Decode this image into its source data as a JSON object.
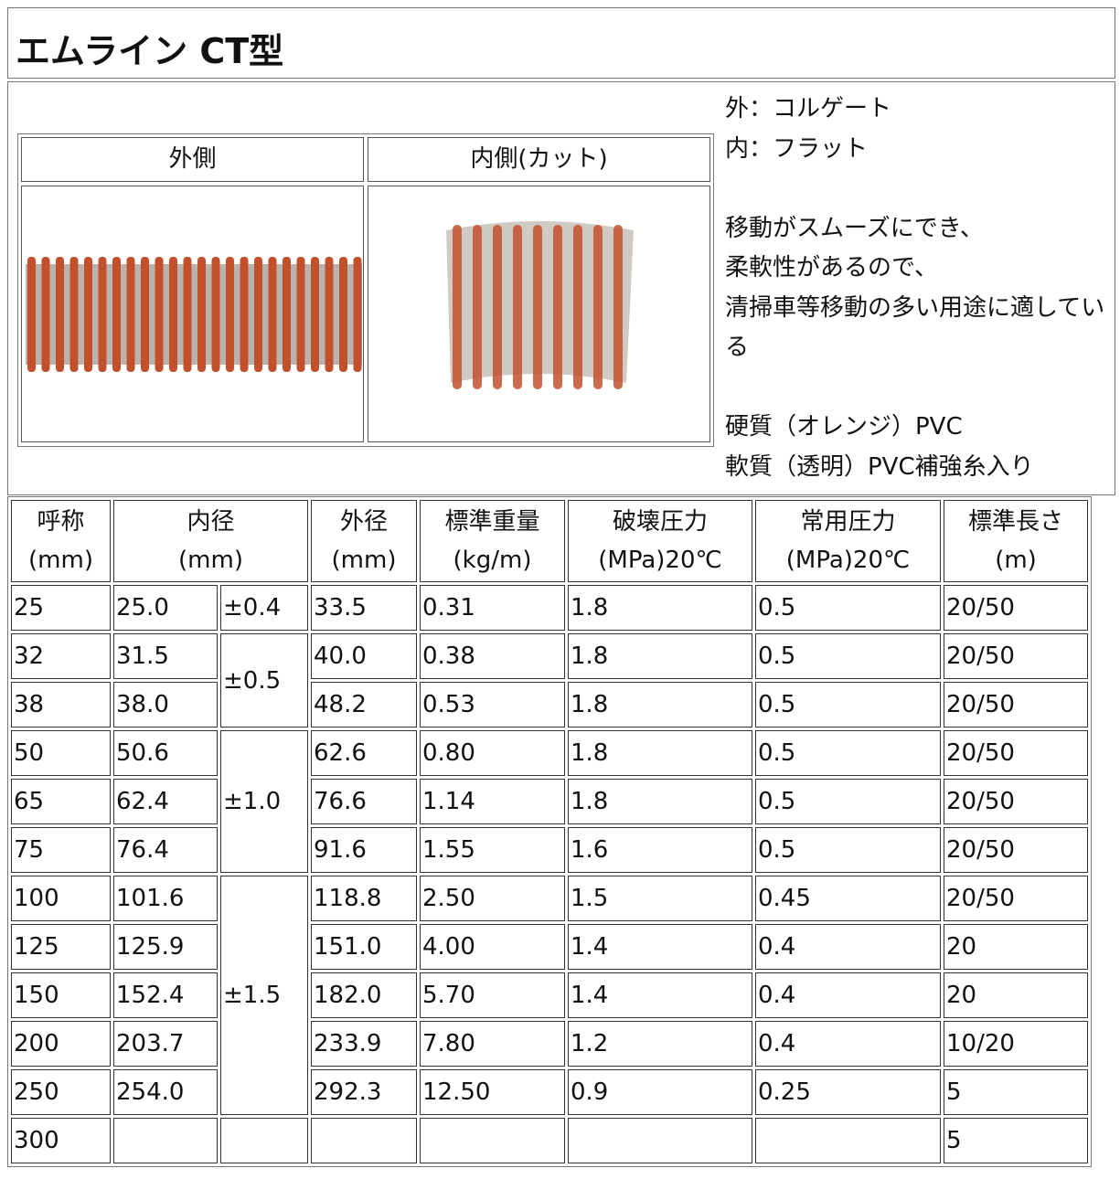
{
  "title": "エムライン CT型",
  "photos": {
    "headers": [
      "外側",
      "内側(カット)"
    ]
  },
  "description": {
    "structure": [
      "外：コルゲート",
      "内：フラット"
    ],
    "features": [
      "移動がスムーズにでき、",
      "柔軟性があるので、",
      "清掃車等移動の多い用途に適している"
    ],
    "materials": [
      "硬質（オレンジ）PVC",
      "軟質（透明）PVC補強糸入り"
    ]
  },
  "table": {
    "headers": [
      {
        "name": "呼称",
        "unit": "(mm)"
      },
      {
        "name": "内径",
        "unit": "(mm)"
      },
      {
        "name": "外径",
        "unit": "(mm)"
      },
      {
        "name": "標準重量",
        "unit": "(kg/m)"
      },
      {
        "name": "破壊圧力",
        "unit": "(MPa)20℃"
      },
      {
        "name": "常用圧力",
        "unit": "(MPa)20℃"
      },
      {
        "name": "標準長さ",
        "unit": "(m)"
      }
    ],
    "tolerances": [
      "±0.4",
      "±0.5",
      "±1.0",
      "±1.5"
    ],
    "rows": [
      [
        "25",
        "25.0",
        "33.5",
        "0.31",
        "1.8",
        "0.5",
        "20/50"
      ],
      [
        "32",
        "31.5",
        "40.0",
        "0.38",
        "1.8",
        "0.5",
        "20/50"
      ],
      [
        "38",
        "38.0",
        "48.2",
        "0.53",
        "1.8",
        "0.5",
        "20/50"
      ],
      [
        "50",
        "50.6",
        "62.6",
        "0.80",
        "1.8",
        "0.5",
        "20/50"
      ],
      [
        "65",
        "62.4",
        "76.6",
        "1.14",
        "1.8",
        "0.5",
        "20/50"
      ],
      [
        "75",
        "76.4",
        "91.6",
        "1.55",
        "1.6",
        "0.5",
        "20/50"
      ],
      [
        "100",
        "101.6",
        "118.8",
        "2.50",
        "1.5",
        "0.45",
        "20/50"
      ],
      [
        "125",
        "125.9",
        "151.0",
        "4.00",
        "1.4",
        "0.4",
        "20"
      ],
      [
        "150",
        "152.4",
        "182.0",
        "5.70",
        "1.4",
        "0.4",
        "20"
      ],
      [
        "200",
        "203.7",
        "233.9",
        "7.80",
        "1.2",
        "0.4",
        "10/20"
      ],
      [
        "250",
        "254.0",
        "292.3",
        "12.50",
        "0.9",
        "0.25",
        "5"
      ],
      [
        "300",
        null,
        null,
        null,
        null,
        null,
        "5"
      ]
    ]
  }
}
